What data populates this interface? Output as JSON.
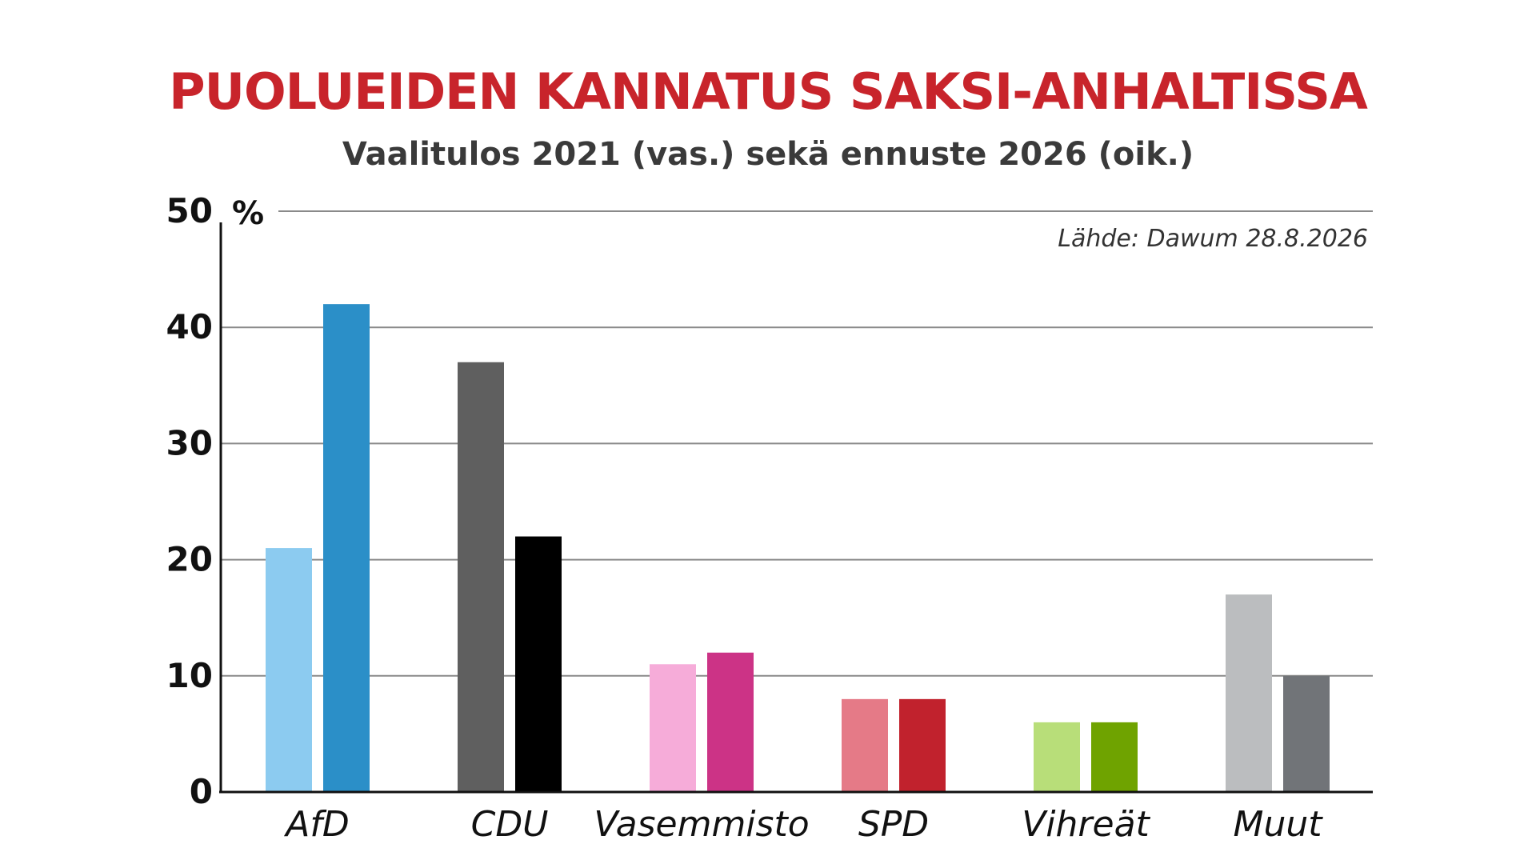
{
  "title": "PUOLUEIDEN KANNATUS SAKSI-ANHALTISSA",
  "subtitle": "Vaalitulos 2021 (vas.) sekä ennuste 2026 (oik.)",
  "source": "Lähde: Dawum 28.8.2026",
  "chart_data": {
    "type": "bar",
    "title": "PUOLUEIDEN KANNATUS SAKSI-ANHALTISSA",
    "subtitle": "Vaalitulos 2021 (vas.) sekä ennuste 2026 (oik.)",
    "categories": [
      "AfD",
      "CDU",
      "Vasemmisto",
      "SPD",
      "Vihreät",
      "Muut"
    ],
    "series": [
      {
        "values": [
          21,
          37,
          11,
          8,
          6,
          17
        ],
        "colors": [
          "#8ccbf0",
          "#5f5f5f",
          "#f6acd9",
          "#e57a87",
          "#b8de79",
          "#bbbdbf"
        ]
      },
      {
        "values": [
          42,
          22,
          12,
          8,
          6,
          10
        ],
        "colors": [
          "#2b8fc8",
          "#000000",
          "#cc3386",
          "#c1222d",
          "#6fa300",
          "#717478"
        ]
      }
    ],
    "ylabel": "%",
    "ylim": [
      0,
      50
    ],
    "yticks": [
      0,
      10,
      20,
      30,
      40,
      50
    ],
    "grid": true,
    "legend": "none"
  }
}
